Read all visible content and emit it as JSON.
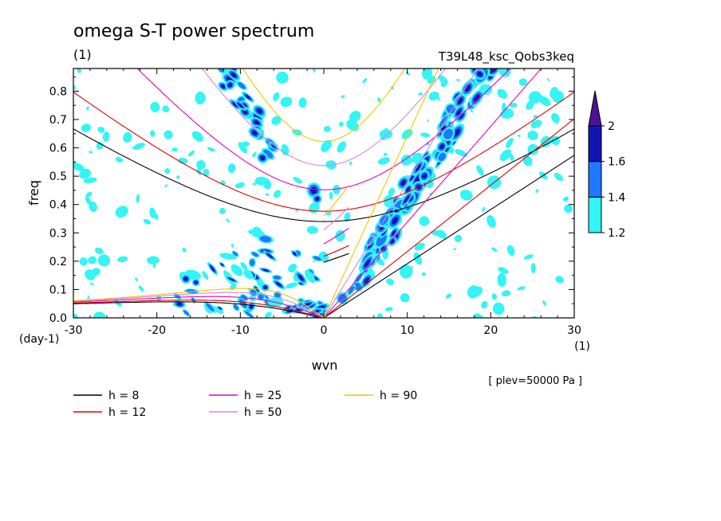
{
  "header": {
    "title": "omega S-T power spectrum",
    "title_unit": "(1)",
    "run_name": "T39L48_ksc_Qobs3keq",
    "level_note": "[ plev=50000 Pa ]"
  },
  "chart_data": {
    "type": "heatmap",
    "xlabel": "wvn",
    "ylabel": "freq",
    "x_unit": "(1)",
    "y_unit": "(day-1)",
    "xlim": [
      -30,
      30
    ],
    "ylim": [
      0,
      0.88
    ],
    "x_ticks": [
      -30,
      -20,
      -10,
      0,
      10,
      20,
      30
    ],
    "y_ticks": [
      0.0,
      0.1,
      0.2,
      0.3,
      0.4,
      0.5,
      0.6,
      0.7,
      0.8
    ],
    "x_tick_labels": [
      "-30",
      "-20",
      "-10",
      "0",
      "10",
      "20",
      "30"
    ],
    "y_tick_labels": [
      "0.0",
      "0.1",
      "0.2",
      "0.3",
      "0.4",
      "0.5",
      "0.6",
      "0.7",
      "0.8"
    ],
    "colorbar": {
      "levels": [
        1.2,
        1.4,
        1.6,
        2
      ],
      "level_labels": [
        "1.2",
        "1.4",
        "1.6",
        "2"
      ],
      "colors": [
        "#33f5f5",
        "#1f78ff",
        "#1414b4",
        "#4b1496"
      ]
    },
    "dispersion_curves": [
      {
        "h": 8,
        "label": "h =  8",
        "color": "#000000"
      },
      {
        "h": 12,
        "label": "h = 12",
        "color": "#e60000"
      },
      {
        "h": 25,
        "label": "h = 25",
        "color": "#e600c8"
      },
      {
        "h": 50,
        "label": "h = 50",
        "color": "#dc82e6"
      },
      {
        "h": 90,
        "label": "h = 90",
        "color": "#f0c800"
      }
    ],
    "features": [
      {
        "name": "kelvin-wave-band",
        "wvn_range": [
          2,
          20
        ],
        "freq_range": [
          0.05,
          0.88
        ],
        "level": 2
      },
      {
        "name": "westward-inertia-gravity-band",
        "wvn_range": [
          -14,
          -5
        ],
        "freq_range": [
          0.6,
          0.88
        ],
        "level": 1.6
      },
      {
        "name": "n0-inertia-gravity-patch",
        "wvn_range": [
          -2.5,
          0
        ],
        "freq_range": [
          0.38,
          0.48
        ],
        "level": 1.6
      },
      {
        "name": "rossby-low-frequency-band",
        "wvn_range": [
          -18,
          0
        ],
        "freq_range": [
          0.0,
          0.3
        ],
        "level": 1.6
      }
    ]
  }
}
